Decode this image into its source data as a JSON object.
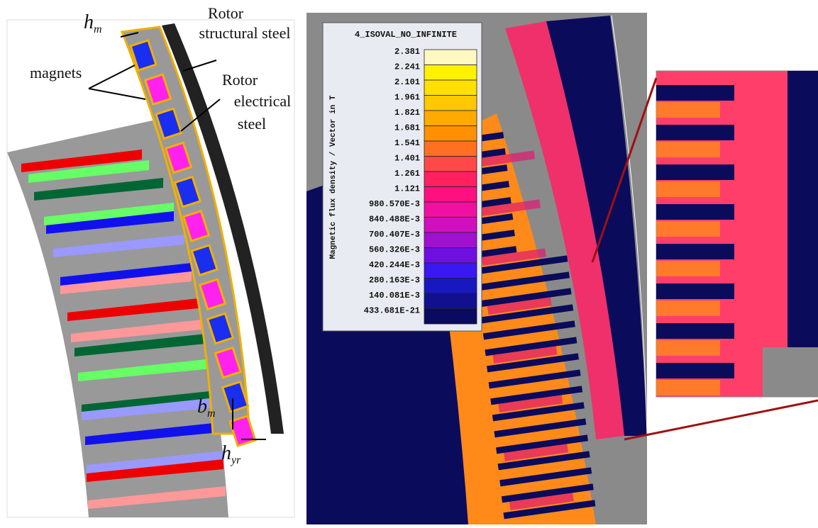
{
  "left_panel": {
    "h_m": {
      "base": "h",
      "sub": "m"
    },
    "magnets": "magnets",
    "rotor_structural": [
      "Rotor",
      "structural steel"
    ],
    "rotor_electrical": [
      "Rotor",
      "electrical",
      "steel"
    ],
    "b_m": {
      "base": "b",
      "sub": "m"
    },
    "h_yr": {
      "base": "h",
      "sub": "yr"
    }
  },
  "legend": {
    "title": "4_ISOVAL_NO_INFINITE",
    "axis_label": "Magnetic flux density / Vector in T",
    "values": [
      "2.381",
      "2.241",
      "2.101",
      "1.961",
      "1.821",
      "1.681",
      "1.541",
      "1.401",
      "1.261",
      "1.121",
      "980.570E-3",
      "840.488E-3",
      "700.407E-3",
      "560.326E-3",
      "420.244E-3",
      "280.163E-3",
      "140.081E-3",
      "433.681E-21"
    ],
    "colors": [
      "#fff8c0",
      "#fff200",
      "#ffe000",
      "#ffc800",
      "#ffaa00",
      "#ff9000",
      "#ff7020",
      "#ff4848",
      "#ff2060",
      "#ff1080",
      "#f010a0",
      "#d010c0",
      "#a010d0",
      "#7010e0",
      "#3a18f0",
      "#1818c0",
      "#101090",
      "#0a0a60"
    ]
  }
}
